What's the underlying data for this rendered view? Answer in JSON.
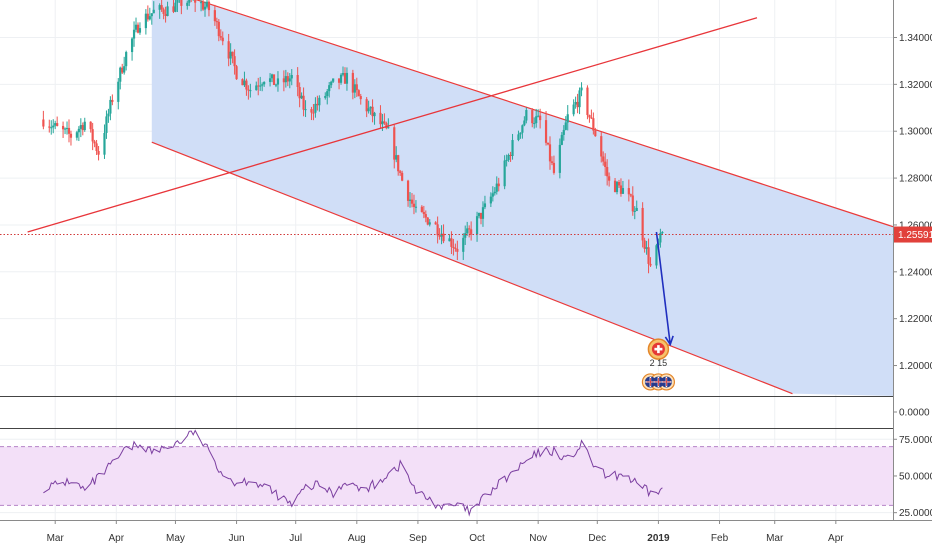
{
  "colors": {
    "background": "#ffffff",
    "grid": "#eef0f3",
    "up_candle": "#26a69a",
    "down_candle": "#ef5350",
    "channel_fill": "#cddcf7",
    "channel_line": "#ea3a3a",
    "trendline": "#e8353a",
    "projection_arrow": "#1f2fbf",
    "price_line": "#d13a3a",
    "price_label_bg": "#e1413b",
    "price_label_text": "#ffffff",
    "rsi_line": "#7b3fa0",
    "rsi_band": "#f3e0f8",
    "rsi_band_line": "#b583c7",
    "axis_text": "#333333",
    "separator": "#444444"
  },
  "icons": {
    "event_marker_upper": "swiss-flag-icon",
    "event_marker_lower": "uk-flag-icon",
    "event_marker_lower_count": "2 15"
  },
  "price_axis": {
    "ticks": [
      "1.34000",
      "1.32000",
      "1.30000",
      "1.28000",
      "1.26000",
      "1.24000",
      "1.22000",
      "1.20000"
    ],
    "current_price": "1.25591"
  },
  "volume_axis": {
    "ticks": [
      "0.0000"
    ]
  },
  "rsi_axis": {
    "ticks": [
      "75.0000",
      "50.0000",
      "25.0000"
    ]
  },
  "time_axis": {
    "ticks": [
      "Mar",
      "Apr",
      "May",
      "Jun",
      "Jul",
      "Aug",
      "Sep",
      "Oct",
      "Nov",
      "Dec",
      "2019",
      "Feb",
      "Mar",
      "Apr"
    ]
  },
  "chart_data": [
    {
      "type": "candlestick",
      "instrument_ticks": "1.34000 … 1.20000",
      "x_axis_months": [
        "Mar",
        "Apr",
        "May",
        "Jun",
        "Jul",
        "Aug",
        "Sep",
        "Oct",
        "Nov",
        "Dec",
        "2019",
        "Feb",
        "Mar",
        "Apr"
      ],
      "ylim": [
        1.187,
        1.356
      ],
      "current_price": 1.25591,
      "weekly_path": [
        [
          "2018-02-23",
          1.305
        ],
        [
          "2018-03-02",
          1.301
        ],
        [
          "2018-03-09",
          1.298
        ],
        [
          "2018-03-16",
          1.304
        ],
        [
          "2018-03-23",
          1.291
        ],
        [
          "2018-03-30",
          1.314
        ],
        [
          "2018-04-06",
          1.333
        ],
        [
          "2018-04-13",
          1.347
        ],
        [
          "2018-04-20",
          1.351
        ],
        [
          "2018-04-27",
          1.352
        ],
        [
          "2018-05-04",
          1.355
        ],
        [
          "2018-05-11",
          1.356
        ],
        [
          "2018-05-18",
          1.352
        ],
        [
          "2018-05-25",
          1.34
        ],
        [
          "2018-06-01",
          1.325
        ],
        [
          "2018-06-08",
          1.318
        ],
        [
          "2018-06-15",
          1.323
        ],
        [
          "2018-06-22",
          1.32
        ],
        [
          "2018-06-29",
          1.323
        ],
        [
          "2018-07-06",
          1.308
        ],
        [
          "2018-07-13",
          1.312
        ],
        [
          "2018-07-20",
          1.32
        ],
        [
          "2018-07-27",
          1.323
        ],
        [
          "2018-08-03",
          1.313
        ],
        [
          "2018-08-10",
          1.306
        ],
        [
          "2018-08-17",
          1.299
        ],
        [
          "2018-08-24",
          1.279
        ],
        [
          "2018-08-31",
          1.265
        ],
        [
          "2018-09-07",
          1.262
        ],
        [
          "2018-09-14",
          1.256
        ],
        [
          "2018-09-21",
          1.25
        ],
        [
          "2018-09-28",
          1.258
        ],
        [
          "2018-10-05",
          1.267
        ],
        [
          "2018-10-12",
          1.278
        ],
        [
          "2018-10-19",
          1.294
        ],
        [
          "2018-10-26",
          1.307
        ],
        [
          "2018-11-02",
          1.304
        ],
        [
          "2018-11-09",
          1.282
        ],
        [
          "2018-11-16",
          1.306
        ],
        [
          "2018-11-23",
          1.316
        ],
        [
          "2018-11-30",
          1.299
        ],
        [
          "2018-12-07",
          1.278
        ],
        [
          "2018-12-14",
          1.275
        ],
        [
          "2018-12-21",
          1.266
        ],
        [
          "2018-12-28",
          1.242
        ],
        [
          "2019-01-03",
          1.256
        ]
      ],
      "channel": {
        "upper": [
          [
            "2018-05-11",
            1.356
          ],
          [
            "2019-04-20",
            1.262
          ]
        ],
        "lower": [
          [
            "2018-04-20",
            1.295
          ],
          [
            "2019-03-10",
            1.188
          ]
        ]
      },
      "trendline": [
        [
          "2018-02-15",
          1.257
        ],
        [
          "2018-11-05",
          1.322
        ]
      ],
      "projection_arrow": [
        [
          "2018-12-31",
          1.257
        ],
        [
          "2019-01-07",
          1.209
        ]
      ],
      "event_markers": [
        [
          "2019-01-01",
          1.207
        ],
        [
          "2019-01-01",
          1.193
        ]
      ]
    },
    {
      "type": "bar",
      "name": "volume",
      "ylim": [
        0,
        1
      ],
      "ticks": [
        0.0
      ]
    },
    {
      "type": "line",
      "name": "rsi",
      "ylim": [
        20,
        82
      ],
      "bands": [
        30,
        70
      ],
      "ticks": [
        75,
        50,
        25
      ],
      "values": [
        [
          "2018-02-23",
          42
        ],
        [
          "2018-03-02",
          44
        ],
        [
          "2018-03-09",
          47
        ],
        [
          "2018-03-16",
          40
        ],
        [
          "2018-03-23",
          49
        ],
        [
          "2018-03-30",
          58
        ],
        [
          "2018-04-06",
          68
        ],
        [
          "2018-04-13",
          72
        ],
        [
          "2018-04-20",
          66
        ],
        [
          "2018-04-27",
          70
        ],
        [
          "2018-05-04",
          74
        ],
        [
          "2018-05-11",
          81
        ],
        [
          "2018-05-18",
          66
        ],
        [
          "2018-05-25",
          52
        ],
        [
          "2018-06-01",
          45
        ],
        [
          "2018-06-08",
          48
        ],
        [
          "2018-06-15",
          42
        ],
        [
          "2018-06-22",
          37
        ],
        [
          "2018-06-29",
          30
        ],
        [
          "2018-07-06",
          42
        ],
        [
          "2018-07-13",
          44
        ],
        [
          "2018-07-20",
          38
        ],
        [
          "2018-07-27",
          47
        ],
        [
          "2018-08-03",
          40
        ],
        [
          "2018-08-10",
          44
        ],
        [
          "2018-08-17",
          52
        ],
        [
          "2018-08-24",
          58
        ],
        [
          "2018-08-31",
          39
        ],
        [
          "2018-09-07",
          34
        ],
        [
          "2018-09-14",
          28
        ],
        [
          "2018-09-21",
          30
        ],
        [
          "2018-09-28",
          25
        ],
        [
          "2018-10-05",
          36
        ],
        [
          "2018-10-12",
          44
        ],
        [
          "2018-10-19",
          52
        ],
        [
          "2018-10-26",
          60
        ],
        [
          "2018-11-02",
          66
        ],
        [
          "2018-11-09",
          67
        ],
        [
          "2018-11-16",
          61
        ],
        [
          "2018-11-23",
          71
        ],
        [
          "2018-11-30",
          56
        ],
        [
          "2018-12-07",
          48
        ],
        [
          "2018-12-14",
          52
        ],
        [
          "2018-12-21",
          44
        ],
        [
          "2018-12-28",
          38
        ],
        [
          "2019-01-03",
          41
        ]
      ]
    }
  ]
}
